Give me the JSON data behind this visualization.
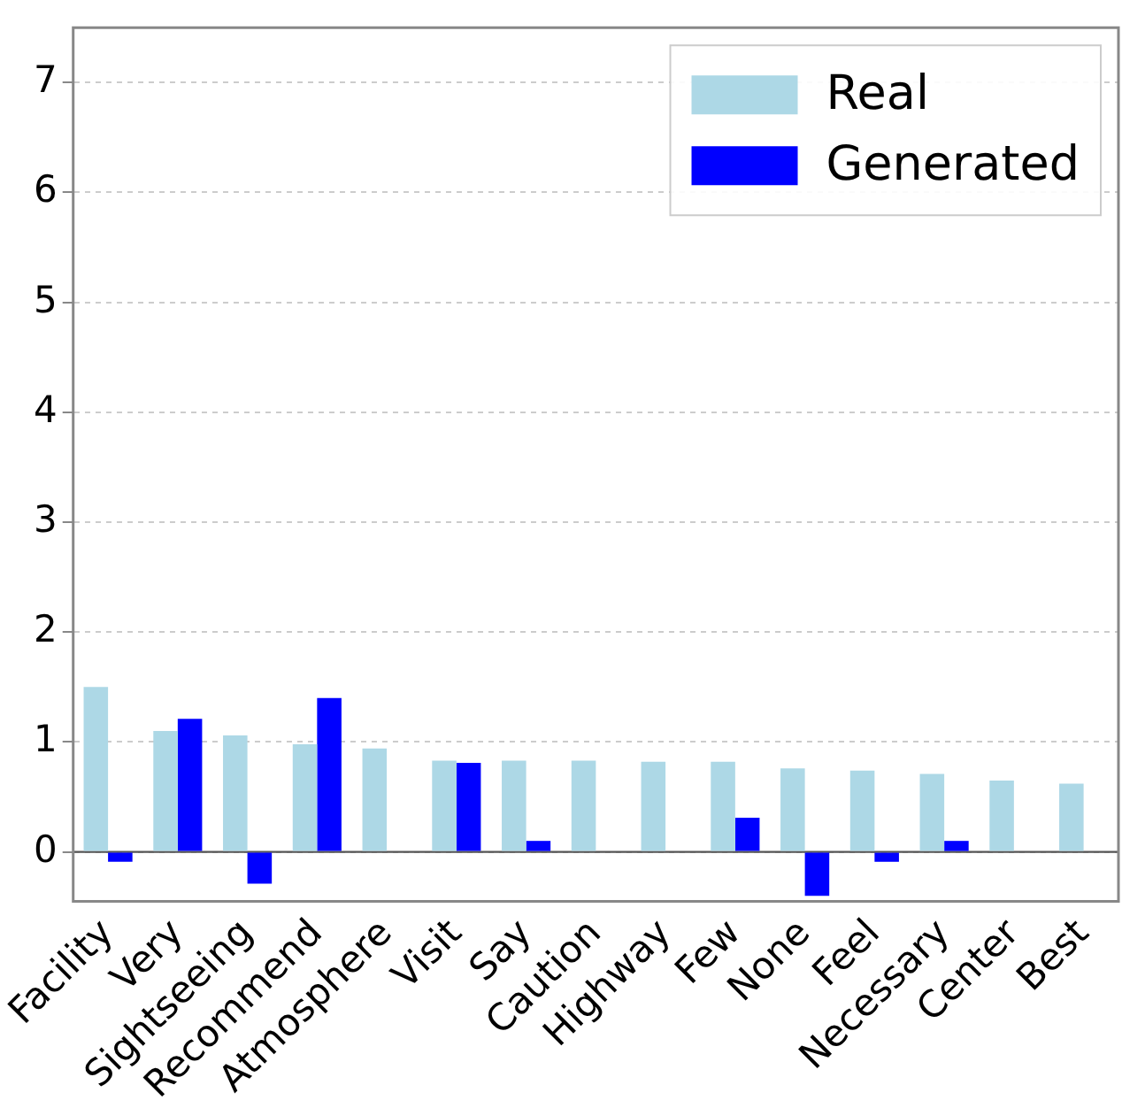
{
  "chart_data": {
    "type": "bar",
    "categories": [
      "Facility",
      "Very",
      "Sightseeing",
      "Recommend",
      "Atmosphere",
      "Visit",
      "Say",
      "Caution",
      "Highway",
      "Few",
      "None",
      "Feel",
      "Necessary",
      "Center",
      "Best"
    ],
    "series": [
      {
        "name": "Real",
        "color": "#add8e6",
        "values": [
          1.5,
          1.1,
          1.06,
          0.98,
          0.94,
          0.83,
          0.83,
          0.83,
          0.82,
          0.82,
          0.76,
          0.74,
          0.71,
          0.65,
          0.62
        ]
      },
      {
        "name": "Generated",
        "color": "#0000ff",
        "values": [
          -0.09,
          1.21,
          -0.29,
          1.4,
          0,
          0.81,
          0.1,
          null,
          null,
          0.31,
          -0.4,
          -0.09,
          0.1,
          null,
          null
        ]
      }
    ],
    "ylim": [
      -0.45,
      7.5
    ],
    "yticks": [
      0,
      1,
      2,
      3,
      4,
      5,
      6,
      7
    ],
    "ref_lines": [
      {
        "axis": "y",
        "value": 0,
        "color": "#555555"
      }
    ],
    "grid": "y",
    "legend": "top right"
  }
}
